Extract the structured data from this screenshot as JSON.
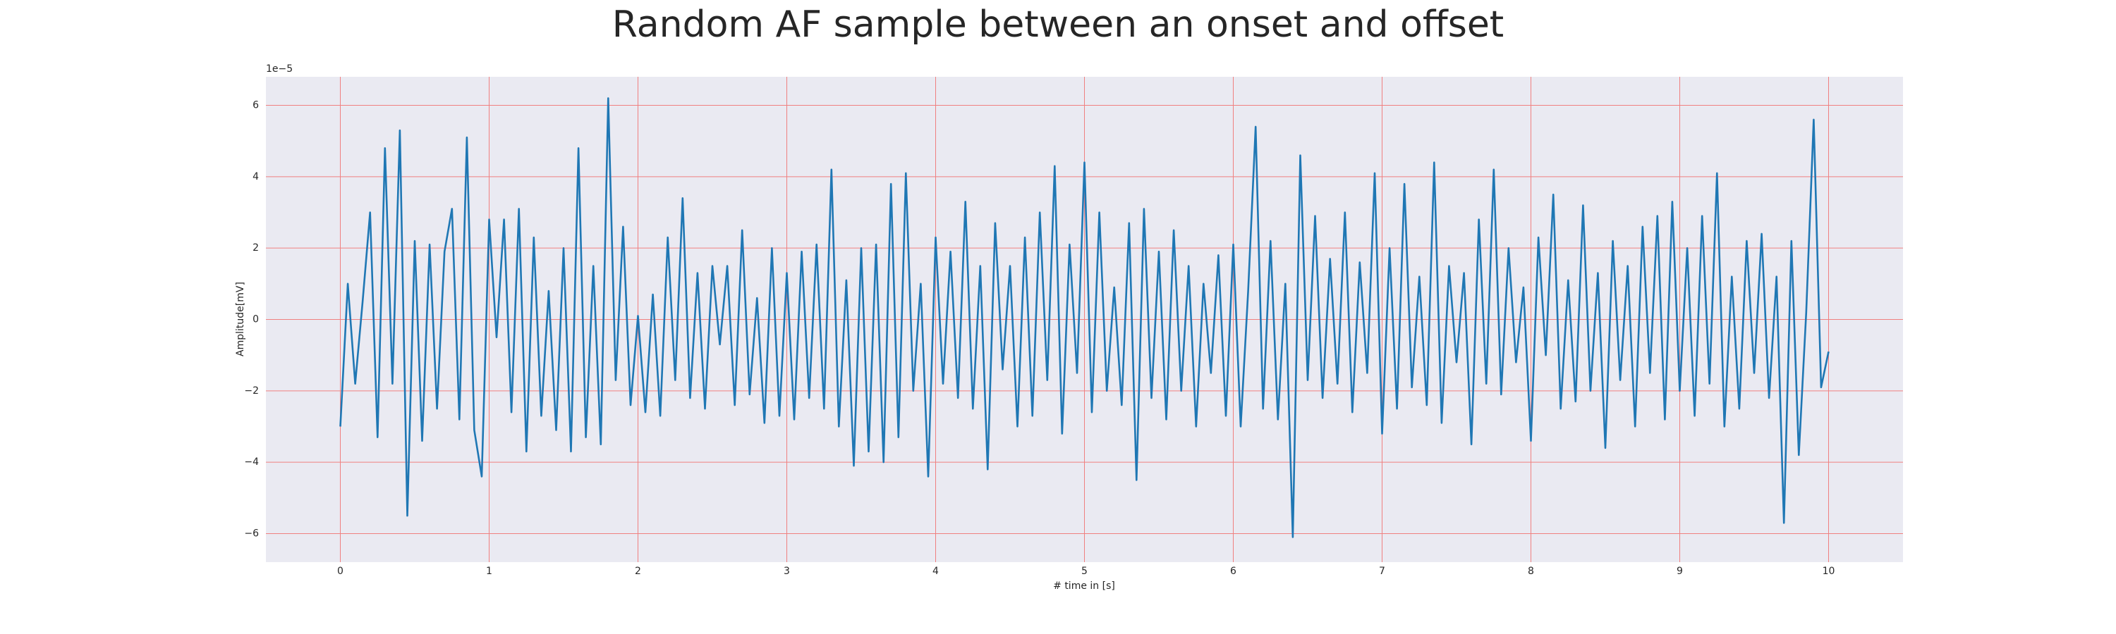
{
  "chart_data": {
    "type": "line",
    "title": "Random AF sample between an onset and offset",
    "x_label": "# time in [s]",
    "y_label": "Amplitude[mV]",
    "y_offset_text": "1e−5",
    "xlim": [
      -0.5,
      10.5
    ],
    "ylim": [
      -6.8,
      6.8
    ],
    "xticks": [
      0,
      1,
      2,
      3,
      4,
      5,
      6,
      7,
      8,
      9,
      10
    ],
    "yticks": [
      {
        "value": -6,
        "label": "−6"
      },
      {
        "value": -4,
        "label": "−4"
      },
      {
        "value": -2,
        "label": "−2"
      },
      0,
      2,
      4,
      6
    ],
    "grid": true,
    "grid_color": "#f08080",
    "background": "#eaeaf2",
    "x": [
      0,
      0.05,
      0.1,
      0.15,
      0.2,
      0.25,
      0.3,
      0.35,
      0.4,
      0.45,
      0.5,
      0.55,
      0.6,
      0.65,
      0.7,
      0.75,
      0.8,
      0.85,
      0.9,
      0.95,
      1,
      1.05,
      1.1,
      1.15,
      1.2,
      1.25,
      1.3,
      1.35,
      1.4,
      1.45,
      1.5,
      1.55,
      1.6,
      1.65,
      1.7,
      1.75,
      1.8,
      1.85,
      1.9,
      1.95,
      2,
      2.05,
      2.1,
      2.15,
      2.2,
      2.25,
      2.3,
      2.35,
      2.4,
      2.45,
      2.5,
      2.55,
      2.6,
      2.65,
      2.7,
      2.75,
      2.8,
      2.85,
      2.9,
      2.95,
      3,
      3.05,
      3.1,
      3.15,
      3.2,
      3.25,
      3.3,
      3.35,
      3.4,
      3.45,
      3.5,
      3.55,
      3.6,
      3.65,
      3.7,
      3.75,
      3.8,
      3.85,
      3.9,
      3.95,
      4,
      4.05,
      4.1,
      4.15,
      4.2,
      4.25,
      4.3,
      4.35,
      4.4,
      4.45,
      4.5,
      4.55,
      4.6,
      4.65,
      4.7,
      4.75,
      4.8,
      4.85,
      4.9,
      4.95,
      5,
      5.05,
      5.1,
      5.15,
      5.2,
      5.25,
      5.3,
      5.35,
      5.4,
      5.45,
      5.5,
      5.55,
      5.6,
      5.65,
      5.7,
      5.75,
      5.8,
      5.85,
      5.9,
      5.95,
      6,
      6.05,
      6.1,
      6.15,
      6.2,
      6.25,
      6.3,
      6.35,
      6.4,
      6.45,
      6.5,
      6.55,
      6.6,
      6.65,
      6.7,
      6.75,
      6.8,
      6.85,
      6.9,
      6.95,
      7,
      7.05,
      7.1,
      7.15,
      7.2,
      7.25,
      7.3,
      7.35,
      7.4,
      7.45,
      7.5,
      7.55,
      7.6,
      7.65,
      7.7,
      7.75,
      7.8,
      7.85,
      7.9,
      7.95,
      8,
      8.05,
      8.1,
      8.15,
      8.2,
      8.25,
      8.3,
      8.35,
      8.4,
      8.45,
      8.5,
      8.55,
      8.6,
      8.65,
      8.7,
      8.75,
      8.8,
      8.85,
      8.9,
      8.95,
      9,
      9.05,
      9.1,
      9.15,
      9.2,
      9.25,
      9.3,
      9.35,
      9.4,
      9.45,
      9.5,
      9.55,
      9.6,
      9.65,
      9.7,
      9.75,
      9.8,
      9.85,
      9.9,
      9.95,
      10
    ],
    "series": [
      {
        "color": "#1f77b4",
        "values": [
          -3,
          1,
          -1.8,
          0.5,
          3,
          -3.3,
          4.8,
          -1.8,
          5.3,
          -5.5,
          2.2,
          -3.4,
          2.1,
          -2.5,
          1.9,
          3.1,
          -2.8,
          5.1,
          -3.1,
          -4.4,
          2.8,
          -0.5,
          2.8,
          -2.6,
          3.1,
          -3.7,
          2.3,
          -2.7,
          0.8,
          -3.1,
          2.0,
          -3.7,
          4.8,
          -3.3,
          1.5,
          -3.5,
          6.2,
          -1.7,
          2.6,
          -2.4,
          0.1,
          -2.6,
          0.7,
          -2.7,
          2.3,
          -1.7,
          3.4,
          -2.2,
          1.3,
          -2.5,
          1.5,
          -0.7,
          1.5,
          -2.4,
          2.5,
          -2.1,
          0.6,
          -2.9,
          2.0,
          -2.7,
          1.3,
          -2.8,
          1.9,
          -2.2,
          2.1,
          -2.5,
          4.2,
          -3.0,
          1.1,
          -4.1,
          2.0,
          -3.7,
          2.1,
          -4.0,
          3.8,
          -3.3,
          4.1,
          -2.0,
          1.0,
          -4.4,
          2.3,
          -1.8,
          1.9,
          -2.2,
          3.3,
          -2.5,
          1.5,
          -4.2,
          2.7,
          -1.4,
          1.5,
          -3.0,
          2.3,
          -2.7,
          3.0,
          -1.7,
          4.3,
          -3.2,
          2.1,
          -1.5,
          4.4,
          -2.6,
          3.0,
          -2.0,
          0.9,
          -2.4,
          2.7,
          -4.5,
          3.1,
          -2.2,
          1.9,
          -2.8,
          2.5,
          -2.0,
          1.5,
          -3.0,
          1.0,
          -1.5,
          1.8,
          -2.7,
          2.1,
          -3.0,
          0.8,
          5.4,
          -2.5,
          2.2,
          -2.8,
          1.0,
          -6.1,
          4.6,
          -1.7,
          2.9,
          -2.2,
          1.7,
          -1.8,
          3.0,
          -2.6,
          1.6,
          -1.5,
          4.1,
          -3.2,
          2.0,
          -2.5,
          3.8,
          -1.9,
          1.2,
          -2.4,
          4.4,
          -2.9,
          1.5,
          -1.2,
          1.3,
          -3.5,
          2.8,
          -1.8,
          4.2,
          -2.1,
          2.0,
          -1.2,
          0.9,
          -3.4,
          2.3,
          -1.0,
          3.5,
          -2.5,
          1.1,
          -2.3,
          3.2,
          -2.0,
          1.3,
          -3.6,
          2.2,
          -1.7,
          1.5,
          -3.0,
          2.6,
          -1.5,
          2.9,
          -2.8,
          3.3,
          -2.0,
          2.0,
          -2.7,
          2.9,
          -1.8,
          4.1,
          -3.0,
          1.2,
          -2.5,
          2.2,
          -1.5,
          2.4,
          -2.2,
          1.2,
          -5.7,
          2.2,
          -3.8,
          0.2,
          5.6,
          -1.9,
          -0.9
        ]
      }
    ]
  }
}
